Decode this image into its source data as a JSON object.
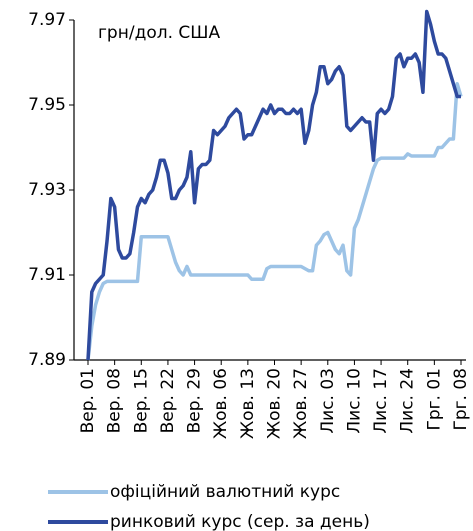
{
  "chart_data": {
    "type": "line",
    "annotation": "грн/дол. США",
    "categories": [
      "Вер. 01",
      null,
      null,
      null,
      null,
      null,
      null,
      "Вер. 08",
      null,
      null,
      null,
      null,
      null,
      null,
      "Вер. 15",
      null,
      null,
      null,
      null,
      null,
      null,
      "Вер. 22",
      null,
      null,
      null,
      null,
      null,
      null,
      "Вер. 29",
      null,
      null,
      null,
      null,
      null,
      null,
      "Жов. 06",
      null,
      null,
      null,
      null,
      null,
      null,
      "Жов. 13",
      null,
      null,
      null,
      null,
      null,
      null,
      "Жов. 20",
      null,
      null,
      null,
      null,
      null,
      null,
      "Жов. 27",
      null,
      null,
      null,
      null,
      null,
      null,
      "Лис. 03",
      null,
      null,
      null,
      null,
      null,
      null,
      "Лис. 10",
      null,
      null,
      null,
      null,
      null,
      null,
      "Лис. 17",
      null,
      null,
      null,
      null,
      null,
      null,
      "Лис. 24",
      null,
      null,
      null,
      null,
      null,
      null,
      "Грг. 01",
      null,
      null,
      null,
      null,
      null,
      null,
      "Грг. 08"
    ],
    "series": [
      {
        "name": "офіційний валютний курс",
        "color": "#9dc3e6",
        "values": [
          7.89,
          7.898,
          7.903,
          7.906,
          7.908,
          7.9085,
          7.9085,
          7.9085,
          7.9085,
          7.9085,
          7.9085,
          7.9085,
          7.9085,
          7.9085,
          7.919,
          7.919,
          7.919,
          7.919,
          7.919,
          7.919,
          7.919,
          7.919,
          7.916,
          7.913,
          7.911,
          7.91,
          7.912,
          7.91,
          7.91,
          7.91,
          7.91,
          7.91,
          7.91,
          7.91,
          7.91,
          7.91,
          7.91,
          7.91,
          7.91,
          7.91,
          7.91,
          7.91,
          7.91,
          7.909,
          7.909,
          7.909,
          7.909,
          7.9115,
          7.912,
          7.912,
          7.912,
          7.912,
          7.912,
          7.912,
          7.912,
          7.912,
          7.912,
          7.9115,
          7.911,
          7.911,
          7.917,
          7.918,
          7.9195,
          7.92,
          7.918,
          7.916,
          7.915,
          7.917,
          7.911,
          7.91,
          7.921,
          7.923,
          7.926,
          7.929,
          7.932,
          7.935,
          7.937,
          7.9375,
          7.9375,
          7.9375,
          7.9375,
          7.9375,
          7.9375,
          7.9375,
          7.9385,
          7.938,
          7.938,
          7.938,
          7.938,
          7.938,
          7.938,
          7.938,
          7.94,
          7.94,
          7.941,
          7.942,
          7.942,
          7.955,
          7.952
        ]
      },
      {
        "name": "ринковий курс (сер. за день)",
        "color": "#2e4a9e",
        "values": [
          7.89,
          7.906,
          7.908,
          7.909,
          7.91,
          7.918,
          7.928,
          7.926,
          7.916,
          7.914,
          7.914,
          7.915,
          7.92,
          7.926,
          7.928,
          7.927,
          7.929,
          7.93,
          7.933,
          7.937,
          7.937,
          7.934,
          7.928,
          7.928,
          7.93,
          7.931,
          7.933,
          7.939,
          7.927,
          7.935,
          7.936,
          7.936,
          7.937,
          7.944,
          7.943,
          7.944,
          7.945,
          7.947,
          7.948,
          7.949,
          7.948,
          7.942,
          7.943,
          7.943,
          7.945,
          7.947,
          7.949,
          7.948,
          7.95,
          7.948,
          7.949,
          7.949,
          7.948,
          7.948,
          7.949,
          7.948,
          7.949,
          7.941,
          7.944,
          7.95,
          7.953,
          7.959,
          7.959,
          7.955,
          7.956,
          7.958,
          7.959,
          7.957,
          7.945,
          7.944,
          7.945,
          7.946,
          7.947,
          7.946,
          7.946,
          7.937,
          7.948,
          7.949,
          7.948,
          7.949,
          7.952,
          7.961,
          7.962,
          7.959,
          7.961,
          7.961,
          7.962,
          7.96,
          7.953,
          7.972,
          7.969,
          7.965,
          7.962,
          7.962,
          7.961,
          7.958,
          7.955,
          7.952,
          7.952
        ]
      }
    ],
    "ylim": [
      7.89,
      7.97
    ],
    "yticks": [
      7.89,
      7.91,
      7.93,
      7.95,
      7.97
    ],
    "grid": false,
    "legend": "bottom"
  }
}
